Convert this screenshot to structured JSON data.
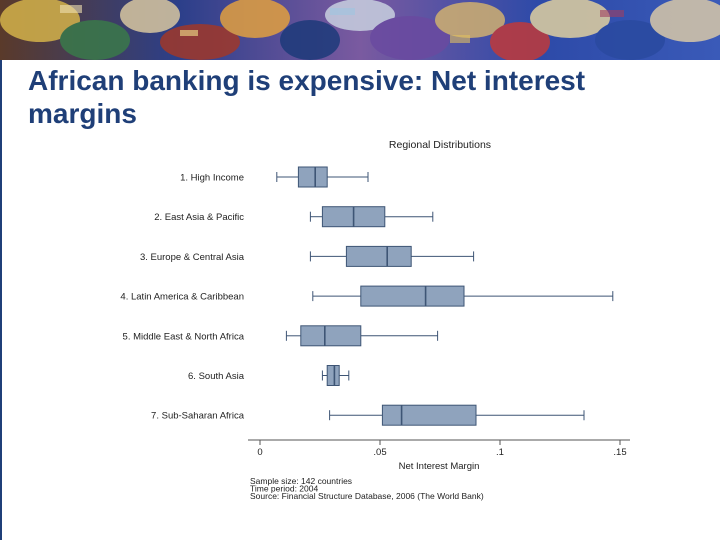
{
  "slide": {
    "title": "African banking is expensive: Net interest margins"
  },
  "colors": {
    "title": "#1f3f78",
    "box_fill": "#8fa3bd",
    "box_stroke": "#3e5575",
    "whisker": "#3e5575"
  },
  "chart_data": {
    "type": "boxplot",
    "title": "Regional Distributions",
    "xlabel": "Net Interest Margin",
    "xlim": [
      0,
      0.15
    ],
    "xticks": [
      {
        "value": 0,
        "label": "0"
      },
      {
        "value": 0.05,
        "label": ".05"
      },
      {
        "value": 0.1,
        "label": ".1"
      },
      {
        "value": 0.15,
        "label": ".15"
      }
    ],
    "categories": [
      "1. High Income",
      "2. East Asia & Pacific",
      "3. Europe & Central Asia",
      "4. Latin America & Caribbean",
      "5. Middle East & North Africa",
      "6. South Asia",
      "7. Sub-Saharan Africa"
    ],
    "boxes": [
      {
        "min": 0.007,
        "q1": 0.016,
        "median": 0.023,
        "q3": 0.028,
        "max": 0.045
      },
      {
        "min": 0.021,
        "q1": 0.026,
        "median": 0.039,
        "q3": 0.052,
        "max": 0.072
      },
      {
        "min": 0.021,
        "q1": 0.036,
        "median": 0.053,
        "q3": 0.063,
        "max": 0.089
      },
      {
        "min": 0.022,
        "q1": 0.042,
        "median": 0.069,
        "q3": 0.085,
        "max": 0.147
      },
      {
        "min": 0.011,
        "q1": 0.017,
        "median": 0.027,
        "q3": 0.042,
        "max": 0.074
      },
      {
        "min": 0.026,
        "q1": 0.028,
        "median": 0.031,
        "q3": 0.033,
        "max": 0.037
      },
      {
        "min": 0.029,
        "q1": 0.051,
        "median": 0.059,
        "q3": 0.09,
        "max": 0.135
      }
    ],
    "notes": [
      "Sample size: 142 countries",
      "Time period: 2004",
      "Source: Financial Structure Database, 2006 (The World Bank)"
    ]
  }
}
